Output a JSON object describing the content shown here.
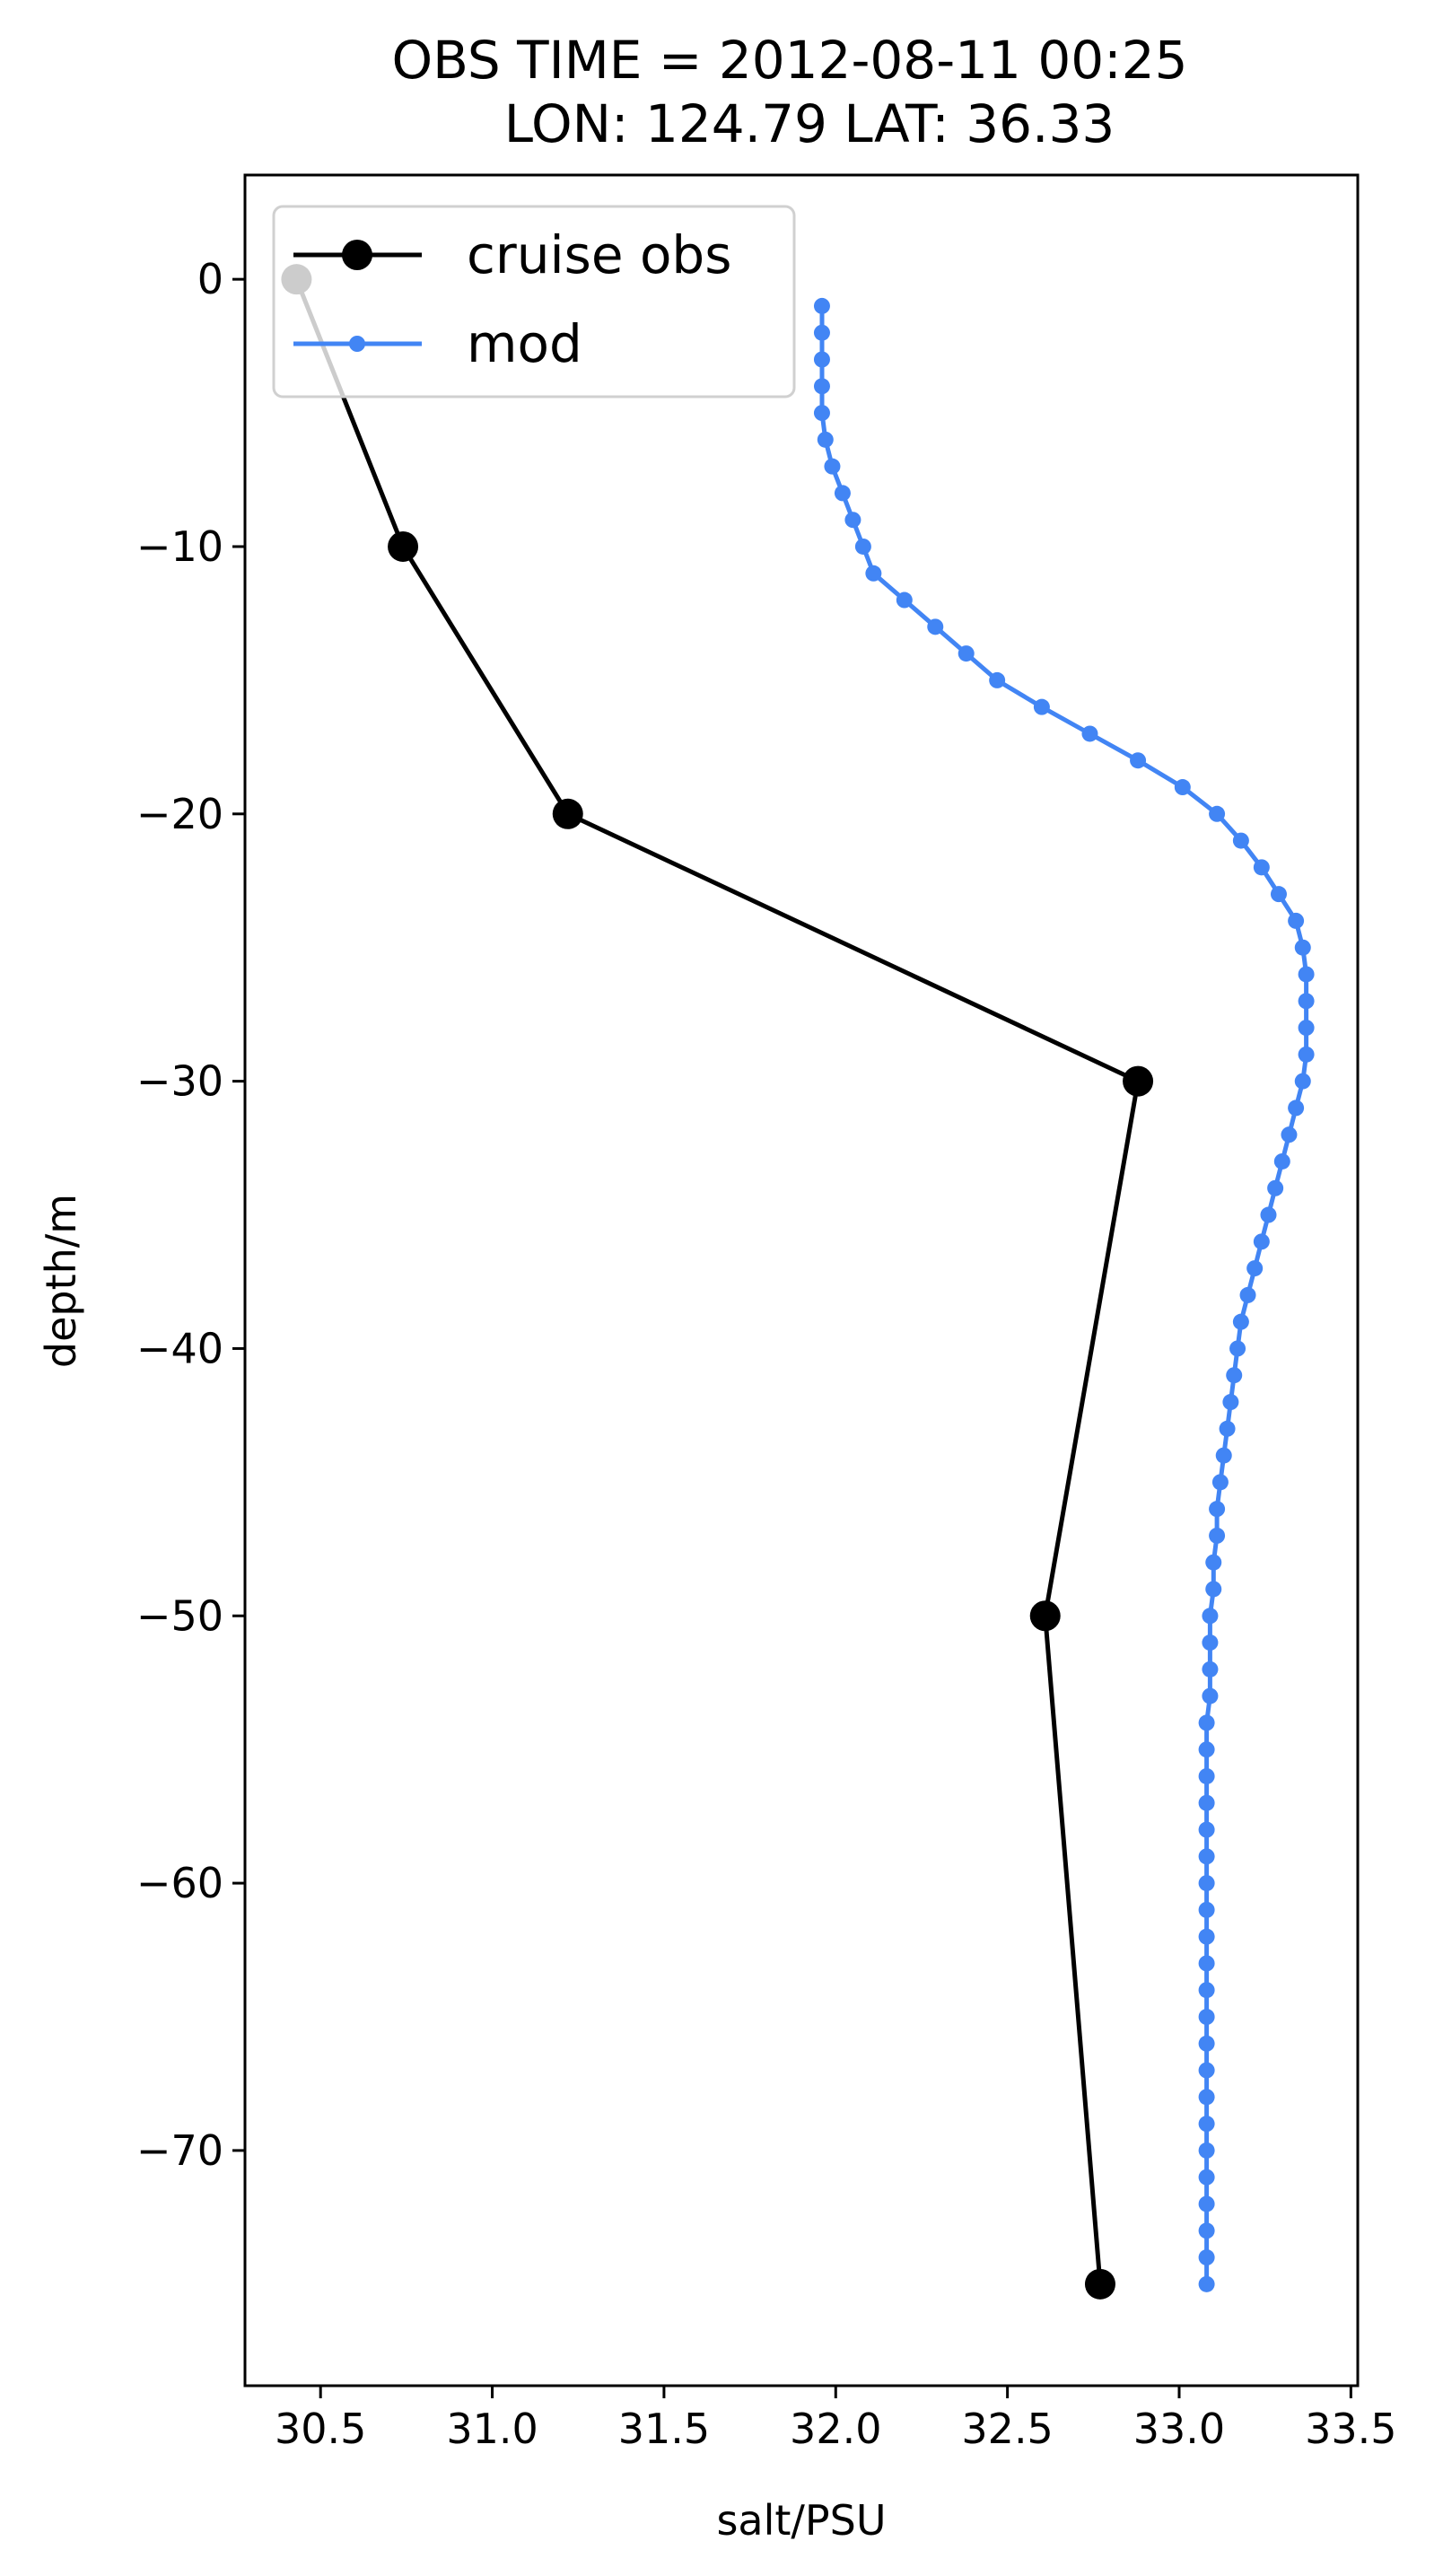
{
  "chart_data": {
    "type": "line",
    "title_line1": "OBS TIME = 2012-08-11 00:25",
    "title_line2": "LON: 124.79 LAT: 36.33",
    "xlabel": "salt/PSU",
    "ylabel": "depth/m",
    "xlim": [
      30.28,
      33.52
    ],
    "ylim": [
      -78.8,
      3.9
    ],
    "xticks": [
      30.5,
      31.0,
      31.5,
      32.0,
      32.5,
      33.0,
      33.5
    ],
    "xtick_labels": [
      "30.5",
      "31.0",
      "31.5",
      "32.0",
      "32.5",
      "33.0",
      "33.5"
    ],
    "yticks": [
      0,
      -10,
      -20,
      -30,
      -40,
      -50,
      -60,
      -70
    ],
    "ytick_labels": [
      "0",
      "−10",
      "−20",
      "−30",
      "−40",
      "−50",
      "−60",
      "−70"
    ],
    "legend_position": "upper-left",
    "series": [
      {
        "name": "cruise obs",
        "color": "#000000",
        "marker": "circle-large",
        "x": [
          30.43,
          30.74,
          31.22,
          32.88,
          32.61,
          32.77
        ],
        "y": [
          0,
          -10,
          -20,
          -30,
          -50,
          -75
        ]
      },
      {
        "name": "mod",
        "color": "#4285f4",
        "marker": "circle-small",
        "x": [
          31.96,
          31.96,
          31.96,
          31.96,
          31.96,
          31.97,
          31.99,
          32.02,
          32.05,
          32.08,
          32.11,
          32.2,
          32.29,
          32.38,
          32.47,
          32.6,
          32.74,
          32.88,
          33.01,
          33.11,
          33.18,
          33.24,
          33.29,
          33.34,
          33.36,
          33.37,
          33.37,
          33.37,
          33.37,
          33.36,
          33.34,
          33.32,
          33.3,
          33.28,
          33.26,
          33.24,
          33.22,
          33.2,
          33.18,
          33.17,
          33.16,
          33.15,
          33.14,
          33.13,
          33.12,
          33.11,
          33.11,
          33.1,
          33.1,
          33.09,
          33.09,
          33.09,
          33.09,
          33.08,
          33.08,
          33.08,
          33.08,
          33.08,
          33.08,
          33.08,
          33.08,
          33.08,
          33.08,
          33.08,
          33.08,
          33.08,
          33.08,
          33.08,
          33.08,
          33.08,
          33.08,
          33.08,
          33.08,
          33.08,
          33.08
        ],
        "y": [
          -1,
          -2,
          -3,
          -4,
          -5,
          -6,
          -7,
          -8,
          -9,
          -10,
          -11,
          -12,
          -13,
          -14,
          -15,
          -16,
          -17,
          -18,
          -19,
          -20,
          -21,
          -22,
          -23,
          -24,
          -25,
          -26,
          -27,
          -28,
          -29,
          -30,
          -31,
          -32,
          -33,
          -34,
          -35,
          -36,
          -37,
          -38,
          -39,
          -40,
          -41,
          -42,
          -43,
          -44,
          -45,
          -46,
          -47,
          -48,
          -49,
          -50,
          -51,
          -52,
          -53,
          -54,
          -55,
          -56,
          -57,
          -58,
          -59,
          -60,
          -61,
          -62,
          -63,
          -64,
          -65,
          -66,
          -67,
          -68,
          -69,
          -70,
          -71,
          -72,
          -73,
          -74,
          -75
        ]
      }
    ]
  }
}
